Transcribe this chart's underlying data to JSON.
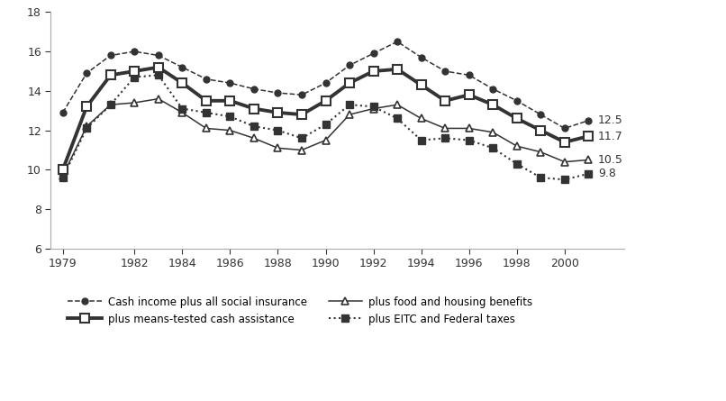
{
  "years": [
    1979,
    1980,
    1981,
    1982,
    1983,
    1984,
    1985,
    1986,
    1987,
    1988,
    1989,
    1990,
    1991,
    1992,
    1993,
    1994,
    1995,
    1996,
    1997,
    1998,
    1999,
    2000,
    2001
  ],
  "cash_income_social_insurance": [
    12.9,
    14.9,
    15.8,
    16.0,
    15.8,
    15.2,
    14.6,
    14.4,
    14.1,
    13.9,
    13.8,
    14.4,
    15.3,
    15.9,
    16.5,
    15.7,
    15.0,
    14.8,
    14.1,
    13.5,
    12.8,
    12.1,
    12.5
  ],
  "plus_means_tested_cash": [
    10.0,
    13.2,
    14.8,
    15.0,
    15.2,
    14.4,
    13.5,
    13.5,
    13.1,
    12.9,
    12.8,
    13.5,
    14.4,
    15.0,
    15.1,
    14.3,
    13.5,
    13.8,
    13.3,
    12.6,
    12.0,
    11.4,
    11.7
  ],
  "plus_food_housing": [
    9.7,
    12.2,
    13.3,
    13.4,
    13.6,
    12.9,
    12.1,
    12.0,
    11.6,
    11.1,
    11.0,
    11.5,
    12.8,
    13.1,
    13.3,
    12.6,
    12.1,
    12.1,
    11.9,
    11.2,
    10.9,
    10.4,
    10.5
  ],
  "plus_eitc_federal_taxes": [
    9.6,
    12.1,
    13.3,
    14.7,
    14.8,
    13.1,
    12.9,
    12.7,
    12.2,
    12.0,
    11.6,
    12.3,
    13.3,
    13.2,
    12.6,
    11.5,
    11.6,
    11.5,
    11.1,
    10.3,
    9.6,
    9.5,
    9.8
  ],
  "ylim": [
    6,
    18
  ],
  "yticks": [
    6,
    8,
    10,
    12,
    14,
    16,
    18
  ],
  "xticks": [
    1979,
    1982,
    1984,
    1986,
    1988,
    1990,
    1992,
    1994,
    1996,
    1998,
    2000
  ],
  "end_labels": {
    "cash_income_social_insurance": "12.5",
    "plus_means_tested_cash": "11.7",
    "plus_food_housing": "10.5",
    "plus_eitc_federal_taxes": "9.8"
  },
  "legend": {
    "cash_income_social_insurance": "Cash income plus all social insurance",
    "plus_means_tested_cash": "plus means-tested cash assistance",
    "plus_food_housing": "plus food and housing benefits",
    "plus_eitc_federal_taxes": "plus EITC and Federal taxes"
  },
  "background_color": "#ffffff",
  "line_color": "#333333"
}
